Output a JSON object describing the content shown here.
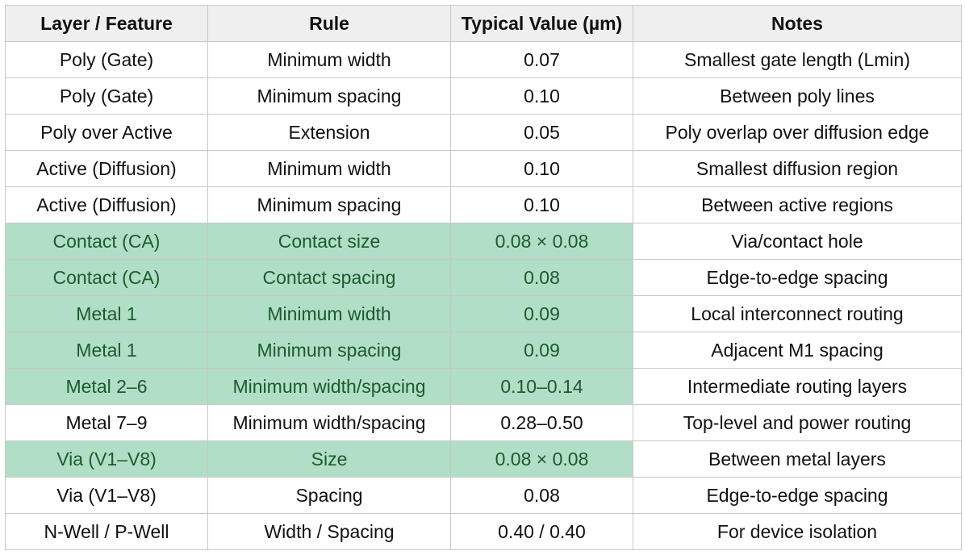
{
  "table": {
    "headers": [
      "Layer / Feature",
      "Rule",
      "Typical Value (µm)",
      "Notes"
    ],
    "rows": [
      {
        "cells": [
          "Poly (Gate)",
          "Minimum width",
          "0.07",
          "Smallest gate length (Lmin)"
        ],
        "highlight": false
      },
      {
        "cells": [
          "Poly (Gate)",
          "Minimum spacing",
          "0.10",
          "Between poly lines"
        ],
        "highlight": false
      },
      {
        "cells": [
          "Poly over Active",
          "Extension",
          "0.05",
          "Poly overlap over diffusion edge"
        ],
        "highlight": false
      },
      {
        "cells": [
          "Active (Diffusion)",
          "Minimum width",
          "0.10",
          "Smallest diffusion region"
        ],
        "highlight": false
      },
      {
        "cells": [
          "Active (Diffusion)",
          "Minimum spacing",
          "0.10",
          "Between active regions"
        ],
        "highlight": false
      },
      {
        "cells": [
          "Contact (CA)",
          "Contact size",
          "0.08 × 0.08",
          "Via/contact hole"
        ],
        "highlight": true
      },
      {
        "cells": [
          "Contact (CA)",
          "Contact spacing",
          "0.08",
          "Edge-to-edge spacing"
        ],
        "highlight": true
      },
      {
        "cells": [
          "Metal 1",
          "Minimum width",
          "0.09",
          "Local interconnect routing"
        ],
        "highlight": true
      },
      {
        "cells": [
          "Metal 1",
          "Minimum spacing",
          "0.09",
          "Adjacent M1 spacing"
        ],
        "highlight": true
      },
      {
        "cells": [
          "Metal 2–6",
          "Minimum width/spacing",
          "0.10–0.14",
          "Intermediate routing layers"
        ],
        "highlight": true
      },
      {
        "cells": [
          "Metal 7–9",
          "Minimum width/spacing",
          "0.28–0.50",
          "Top-level and power routing"
        ],
        "highlight": false
      },
      {
        "cells": [
          "Via (V1–V8)",
          "Size",
          "0.08 × 0.08",
          "Between metal layers"
        ],
        "highlight": true
      },
      {
        "cells": [
          "Via (V1–V8)",
          "Spacing",
          "0.08",
          "Edge-to-edge spacing"
        ],
        "highlight": false
      },
      {
        "cells": [
          "N-Well / P-Well",
          "Width / Spacing",
          "0.40 / 0.40",
          "For device isolation"
        ],
        "highlight": false
      }
    ]
  },
  "colors": {
    "header_bg": "#efefef",
    "highlight_bg": "#b1dec6",
    "highlight_text": "#1d5a2e",
    "border": "#c8c8c8"
  }
}
